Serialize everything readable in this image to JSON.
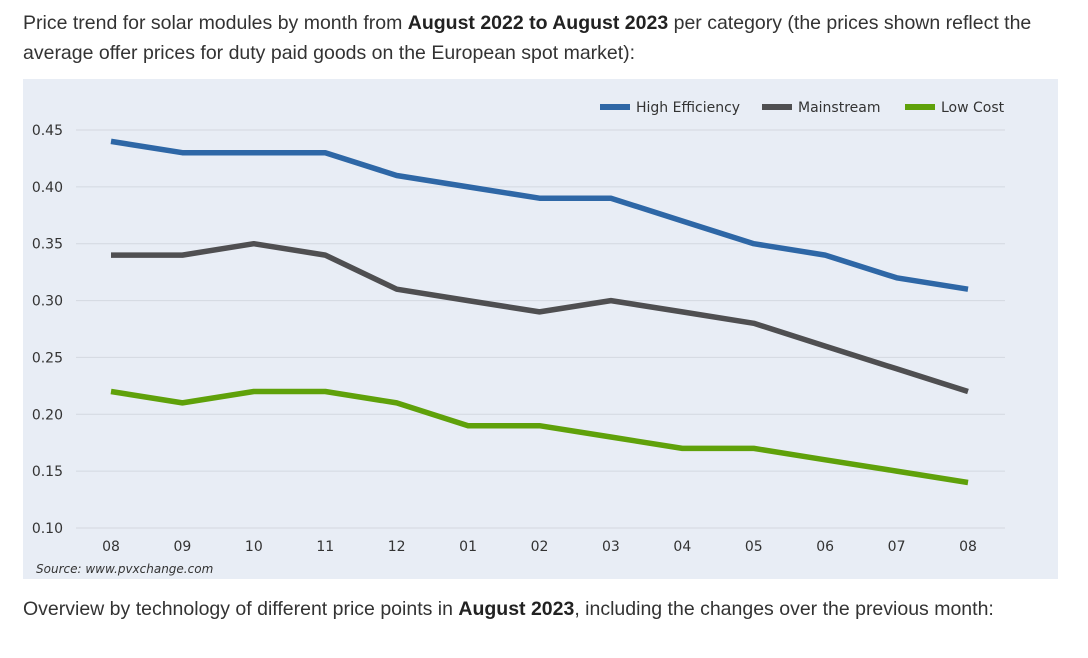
{
  "intro": {
    "part1": "Price trend for solar modules by month from ",
    "bold": "August 2022 to August 2023",
    "part2": " per category (the prices shown reflect the average offer prices for duty paid goods on the European spot market):"
  },
  "outro": {
    "part1": "Overview by technology of different price points in ",
    "bold": "August 2023",
    "part2": ", including the changes over the previous month:"
  },
  "chart_data": {
    "type": "line",
    "categories": [
      "08",
      "09",
      "10",
      "11",
      "12",
      "01",
      "02",
      "03",
      "04",
      "05",
      "06",
      "07",
      "08"
    ],
    "ylim": [
      0.1,
      0.45
    ],
    "yticks": [
      "0.45",
      "0.40",
      "0.35",
      "0.30",
      "0.25",
      "0.20",
      "0.15",
      "0.10"
    ],
    "grid": true,
    "legend_position": "top-right",
    "source": "Source: www.pvxchange.com",
    "series": [
      {
        "name": "High Efficiency",
        "color": "#2e67a6",
        "values": [
          0.44,
          0.43,
          0.43,
          0.43,
          0.41,
          0.4,
          0.39,
          0.39,
          0.37,
          0.35,
          0.34,
          0.32,
          0.31
        ]
      },
      {
        "name": "Mainstream",
        "color": "#4f4f51",
        "values": [
          0.34,
          0.34,
          0.35,
          0.34,
          0.31,
          0.3,
          0.29,
          0.3,
          0.29,
          0.28,
          0.26,
          0.24,
          0.22
        ]
      },
      {
        "name": "Low Cost",
        "color": "#5fa10a",
        "values": [
          0.22,
          0.21,
          0.22,
          0.22,
          0.21,
          0.19,
          0.19,
          0.18,
          0.17,
          0.17,
          0.16,
          0.15,
          0.14
        ]
      }
    ]
  }
}
